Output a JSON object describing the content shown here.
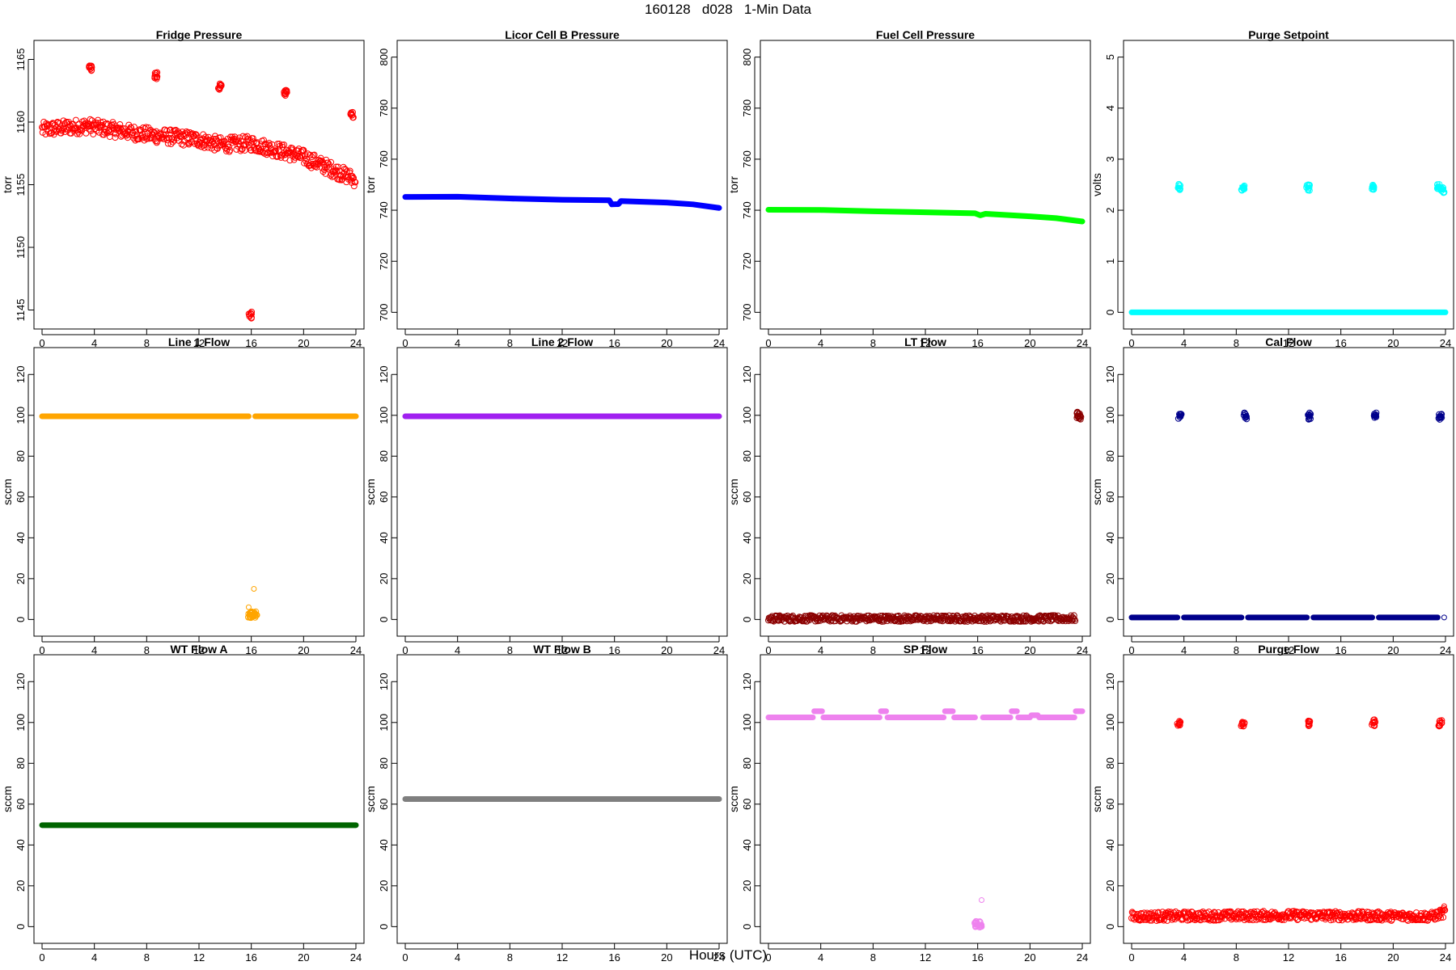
{
  "figure": {
    "title": "160128   d028   1-Min Data",
    "xlabel": "Hours (UTC)"
  },
  "chart_data": [
    {
      "type": "scatter",
      "title": "Fridge Pressure",
      "ylabel": "torr",
      "xlabel": "",
      "xlim": [
        0,
        24
      ],
      "ylim": [
        1144,
        1166
      ],
      "xticks": [
        0,
        4,
        8,
        12,
        16,
        20,
        24
      ],
      "yticks": [
        1145,
        1150,
        1155,
        1160,
        1165
      ],
      "color": "#ff0000",
      "marker": "open-circle",
      "series": [
        {
          "segments": [
            [
              0,
              1159.4
            ],
            [
              3.5,
              1159.7
            ],
            [
              4,
              1159.6
            ],
            [
              8,
              1159.0
            ],
            [
              12,
              1158.6
            ],
            [
              13.6,
              1158.2
            ],
            [
              16,
              1158.3
            ],
            [
              19,
              1157.5
            ],
            [
              20,
              1157.2
            ],
            [
              22,
              1156.3
            ],
            [
              24,
              1155.4
            ]
          ],
          "spread": 0.6
        },
        {
          "clusters": [
            [
              3.7,
              1164.3
            ],
            [
              8.7,
              1163.7
            ],
            [
              13.6,
              1162.8
            ],
            [
              15.9,
              1144.6
            ],
            [
              18.6,
              1162.3
            ],
            [
              23.7,
              1160.6
            ]
          ]
        }
      ]
    },
    {
      "type": "scatter",
      "title": "Licor Cell B Pressure",
      "ylabel": "torr",
      "xlabel": "",
      "xlim": [
        0,
        24
      ],
      "ylim": [
        696,
        804
      ],
      "xticks": [
        0,
        4,
        8,
        12,
        16,
        20,
        24
      ],
      "yticks": [
        700,
        720,
        740,
        760,
        780,
        800
      ],
      "color": "#0000ff",
      "marker": "filled-line",
      "series": [
        {
          "segments": [
            [
              0,
              745.2
            ],
            [
              4,
              745.3
            ],
            [
              8,
              744.6
            ],
            [
              12,
              744.1
            ],
            [
              15.6,
              743.9
            ],
            [
              15.8,
              742.3
            ],
            [
              16.3,
              742.4
            ],
            [
              16.5,
              743.6
            ],
            [
              20,
              743.0
            ],
            [
              22,
              742.3
            ],
            [
              24,
              740.9
            ]
          ],
          "spread": 0
        }
      ]
    },
    {
      "type": "scatter",
      "title": "Fuel Cell Pressure",
      "ylabel": "torr",
      "xlabel": "",
      "xlim": [
        0,
        24
      ],
      "ylim": [
        696,
        804
      ],
      "xticks": [
        0,
        4,
        8,
        12,
        16,
        20,
        24
      ],
      "yticks": [
        700,
        720,
        740,
        760,
        780,
        800
      ],
      "color": "#00ff00",
      "marker": "filled-line",
      "series": [
        {
          "segments": [
            [
              0,
              740.2
            ],
            [
              4,
              740.1
            ],
            [
              8,
              739.6
            ],
            [
              12,
              739.2
            ],
            [
              15.8,
              738.8
            ],
            [
              16.2,
              738.0
            ],
            [
              16.6,
              738.6
            ],
            [
              20,
              737.6
            ],
            [
              22,
              736.9
            ],
            [
              24,
              735.6
            ]
          ],
          "spread": 0
        }
      ]
    },
    {
      "type": "scatter",
      "title": "Purge Setpoint",
      "ylabel": "volts",
      "xlabel": "",
      "xlim": [
        0,
        24
      ],
      "ylim": [
        -0.2,
        5.2
      ],
      "xticks": [
        0,
        4,
        8,
        12,
        16,
        20,
        24
      ],
      "yticks": [
        0,
        1,
        2,
        3,
        4,
        5
      ],
      "color": "#00ffff",
      "marker": "filled-line",
      "series": [
        {
          "segments": [
            [
              0,
              0
            ],
            [
              24,
              0
            ]
          ],
          "spread": 0
        },
        {
          "clusters": [
            [
              3.6,
              2.45
            ],
            [
              8.5,
              2.45
            ],
            [
              13.5,
              2.45
            ],
            [
              18.5,
              2.45
            ],
            [
              23.5,
              2.45
            ],
            [
              23.8,
              2.4
            ]
          ]
        }
      ]
    },
    {
      "type": "scatter",
      "title": "Line 1 Flow",
      "ylabel": "sccm",
      "xlabel": "",
      "xlim": [
        0,
        24
      ],
      "ylim": [
        -5,
        130
      ],
      "xticks": [
        0,
        4,
        8,
        12,
        16,
        20,
        24
      ],
      "yticks": [
        0,
        20,
        40,
        60,
        80,
        100,
        120
      ],
      "color": "#ffa500",
      "marker": "filled-line",
      "series": [
        {
          "segments": [
            [
              0,
              99.5
            ],
            [
              15.8,
              99.5
            ]
          ],
          "spread": 0
        },
        {
          "segments": [
            [
              16.3,
              99.5
            ],
            [
              24,
              99.5
            ]
          ],
          "spread": 0
        },
        {
          "clusters": [
            [
              15.9,
              2.5
            ],
            [
              16.1,
              2.5
            ],
            [
              16.3,
              2.5
            ]
          ]
        },
        {
          "points": [
            [
              15.8,
              6
            ],
            [
              16.2,
              15
            ]
          ]
        }
      ]
    },
    {
      "type": "scatter",
      "title": "Line 2 Flow",
      "ylabel": "sccm",
      "xlabel": "",
      "xlim": [
        0,
        24
      ],
      "ylim": [
        -5,
        130
      ],
      "xticks": [
        0,
        4,
        8,
        12,
        16,
        20,
        24
      ],
      "yticks": [
        0,
        20,
        40,
        60,
        80,
        100,
        120
      ],
      "color": "#a020f0",
      "marker": "filled-line",
      "series": [
        {
          "segments": [
            [
              0,
              99.5
            ],
            [
              24,
              99.5
            ]
          ],
          "spread": 0
        }
      ]
    },
    {
      "type": "scatter",
      "title": "LT Flow",
      "ylabel": "sccm",
      "xlabel": "",
      "xlim": [
        0,
        24
      ],
      "ylim": [
        -5,
        130
      ],
      "xticks": [
        0,
        4,
        8,
        12,
        16,
        20,
        24
      ],
      "yticks": [
        0,
        20,
        40,
        60,
        80,
        100,
        120
      ],
      "color": "#8b0000",
      "marker": "open-circle",
      "series": [
        {
          "segments": [
            [
              0,
              0.5
            ],
            [
              23.5,
              0.5
            ]
          ],
          "spread": 1.5
        },
        {
          "clusters": [
            [
              23.7,
              100
            ],
            [
              23.8,
              98.5
            ]
          ]
        }
      ]
    },
    {
      "type": "scatter",
      "title": "Cal Flow",
      "ylabel": "sccm",
      "xlabel": "",
      "xlim": [
        0,
        24
      ],
      "ylim": [
        -5,
        130
      ],
      "xticks": [
        0,
        4,
        8,
        12,
        16,
        20,
        24
      ],
      "yticks": [
        0,
        20,
        40,
        60,
        80,
        100,
        120
      ],
      "color": "#00008b",
      "marker": "filled-line",
      "series": [
        {
          "segments": [
            [
              0,
              1
            ],
            [
              3.5,
              1
            ]
          ],
          "spread": 0
        },
        {
          "segments": [
            [
              4.0,
              1
            ],
            [
              8.4,
              1
            ]
          ],
          "spread": 0
        },
        {
          "segments": [
            [
              8.9,
              1
            ],
            [
              13.4,
              1
            ]
          ],
          "spread": 0
        },
        {
          "segments": [
            [
              13.9,
              1
            ],
            [
              18.4,
              1
            ]
          ],
          "spread": 0
        },
        {
          "segments": [
            [
              18.9,
              1
            ],
            [
              23.4,
              1
            ]
          ],
          "spread": 0
        },
        {
          "clusters": [
            [
              3.7,
              99.6
            ],
            [
              8.7,
              99.6
            ],
            [
              13.6,
              99.6
            ],
            [
              18.6,
              99.6
            ],
            [
              23.6,
              99.6
            ]
          ]
        },
        {
          "points": [
            [
              23.9,
              1
            ]
          ]
        }
      ]
    },
    {
      "type": "scatter",
      "title": "WT Flow A",
      "ylabel": "sccm",
      "xlabel": "",
      "xlim": [
        0,
        24
      ],
      "ylim": [
        -5,
        130
      ],
      "xticks": [
        0,
        4,
        8,
        12,
        16,
        20,
        24
      ],
      "yticks": [
        0,
        20,
        40,
        60,
        80,
        100,
        120
      ],
      "color": "#006400",
      "marker": "filled-line",
      "series": [
        {
          "segments": [
            [
              0,
              49.7
            ],
            [
              24,
              49.7
            ]
          ],
          "spread": 0
        }
      ]
    },
    {
      "type": "scatter",
      "title": "WT Flow B",
      "ylabel": "sccm",
      "xlabel": "",
      "xlim": [
        0,
        24
      ],
      "ylim": [
        -5,
        130
      ],
      "xticks": [
        0,
        4,
        8,
        12,
        16,
        20,
        24
      ],
      "yticks": [
        0,
        20,
        40,
        60,
        80,
        100,
        120
      ],
      "color": "#7f7f7f",
      "marker": "filled-line",
      "series": [
        {
          "segments": [
            [
              0,
              62.5
            ],
            [
              24,
              62.5
            ]
          ],
          "spread": 0
        }
      ]
    },
    {
      "type": "scatter",
      "title": "SP Flow",
      "ylabel": "sccm",
      "xlabel": "",
      "xlim": [
        0,
        24
      ],
      "ylim": [
        -5,
        130
      ],
      "xticks": [
        0,
        4,
        8,
        12,
        16,
        20,
        24
      ],
      "yticks": [
        0,
        20,
        40,
        60,
        80,
        100,
        120
      ],
      "color": "#ee82ee",
      "marker": "filled-line",
      "series": [
        {
          "segments": [
            [
              0,
              102.5
            ],
            [
              3.4,
              102.5
            ]
          ],
          "spread": 0
        },
        {
          "segments": [
            [
              3.5,
              105.5
            ],
            [
              4.1,
              105.5
            ]
          ],
          "spread": 0
        },
        {
          "segments": [
            [
              4.2,
              102.5
            ],
            [
              8.5,
              102.5
            ]
          ],
          "spread": 0
        },
        {
          "segments": [
            [
              8.6,
              105.5
            ],
            [
              9.0,
              105.5
            ]
          ],
          "spread": 0
        },
        {
          "segments": [
            [
              9.1,
              102.5
            ],
            [
              13.4,
              102.5
            ]
          ],
          "spread": 0
        },
        {
          "segments": [
            [
              13.5,
              105.5
            ],
            [
              14.1,
              105.5
            ]
          ],
          "spread": 0
        },
        {
          "segments": [
            [
              14.2,
              102.5
            ],
            [
              15.8,
              102.5
            ]
          ],
          "spread": 0
        },
        {
          "segments": [
            [
              16.4,
              102.5
            ],
            [
              18.5,
              102.5
            ]
          ],
          "spread": 0
        },
        {
          "segments": [
            [
              18.6,
              105.5
            ],
            [
              19.0,
              105.5
            ]
          ],
          "spread": 0
        },
        {
          "segments": [
            [
              19.1,
              102.5
            ],
            [
              20.0,
              102.5
            ]
          ],
          "spread": 0
        },
        {
          "segments": [
            [
              20.1,
              103.5
            ],
            [
              20.6,
              103.5
            ]
          ],
          "spread": 0
        },
        {
          "segments": [
            [
              20.7,
              102.5
            ],
            [
              23.4,
              102.5
            ]
          ],
          "spread": 0
        },
        {
          "segments": [
            [
              23.5,
              105.5
            ],
            [
              24.0,
              105.5
            ]
          ],
          "spread": 0
        },
        {
          "clusters": [
            [
              15.9,
              1
            ],
            [
              16.2,
              1
            ]
          ]
        },
        {
          "points": [
            [
              16.3,
              13
            ]
          ]
        }
      ]
    },
    {
      "type": "scatter",
      "title": "Purge Flow",
      "ylabel": "sccm",
      "xlabel": "",
      "xlim": [
        0,
        24
      ],
      "ylim": [
        -5,
        130
      ],
      "xticks": [
        0,
        4,
        8,
        12,
        16,
        20,
        24
      ],
      "yticks": [
        0,
        20,
        40,
        60,
        80,
        100,
        120
      ],
      "color": "#ff0000",
      "marker": "open-circle",
      "series": [
        {
          "segments": [
            [
              0,
              5
            ],
            [
              12,
              5.5
            ],
            [
              23,
              5
            ],
            [
              24,
              7
            ]
          ],
          "spread": 2.2
        },
        {
          "clusters": [
            [
              3.6,
              99.8
            ],
            [
              8.5,
              99.8
            ],
            [
              13.5,
              99.8
            ],
            [
              18.5,
              99.8
            ],
            [
              23.6,
              99.8
            ]
          ]
        },
        {
          "points": [
            [
              23.9,
              10
            ],
            [
              23.8,
              8
            ]
          ]
        }
      ]
    }
  ]
}
